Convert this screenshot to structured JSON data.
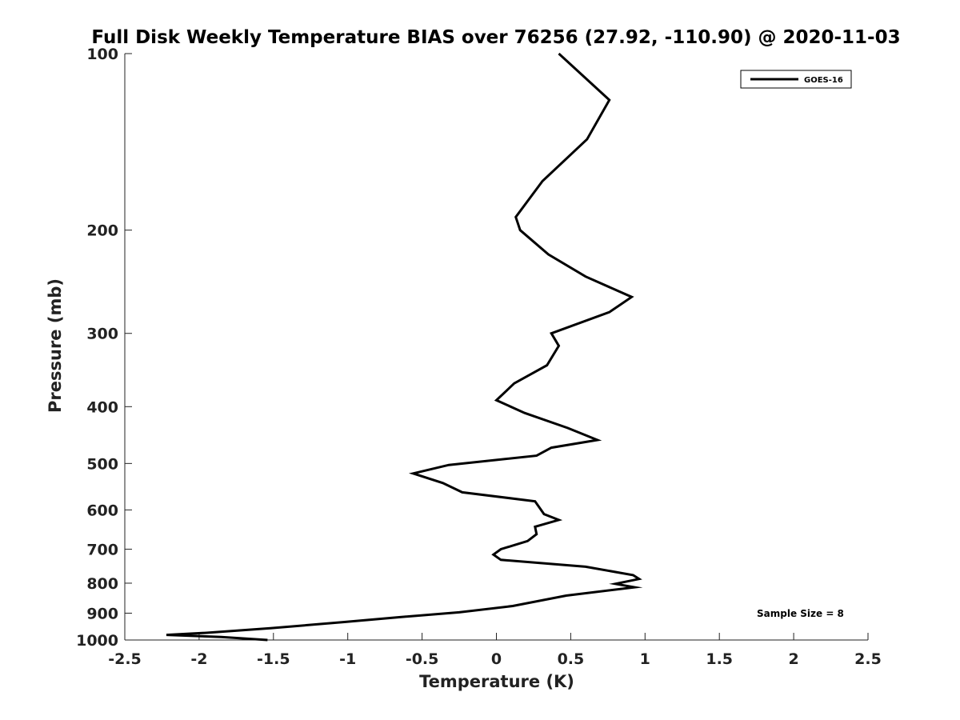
{
  "chart_data": {
    "type": "line",
    "title": "Full Disk Weekly Temperature BIAS over 76256 (27.92, -110.90) @ 2020-11-03",
    "xlabel": "Temperature (K)",
    "ylabel": "Pressure (mb)",
    "xlim": [
      -2.5,
      2.5
    ],
    "ylim": [
      1000,
      100
    ],
    "yscale": "log",
    "y_reversed": true,
    "x_ticks": [
      "-2.5",
      "-2",
      "-1.5",
      "-1",
      "-0.5",
      "0",
      "0.5",
      "1",
      "1.5",
      "2",
      "2.5"
    ],
    "y_ticks": [
      "100",
      "200",
      "300",
      "400",
      "500",
      "600",
      "700",
      "800",
      "900",
      "1000"
    ],
    "grid": false,
    "legend_position": "top-right",
    "series": [
      {
        "name": "GOES-16",
        "color": "#000000",
        "points": [
          {
            "x": 0.42,
            "y": 100
          },
          {
            "x": 0.76,
            "y": 120
          },
          {
            "x": 0.61,
            "y": 140
          },
          {
            "x": 0.31,
            "y": 165
          },
          {
            "x": 0.13,
            "y": 190
          },
          {
            "x": 0.16,
            "y": 200
          },
          {
            "x": 0.35,
            "y": 220
          },
          {
            "x": 0.6,
            "y": 240
          },
          {
            "x": 0.91,
            "y": 260
          },
          {
            "x": 0.76,
            "y": 276
          },
          {
            "x": 0.37,
            "y": 300
          },
          {
            "x": 0.42,
            "y": 315
          },
          {
            "x": 0.34,
            "y": 340
          },
          {
            "x": 0.12,
            "y": 365
          },
          {
            "x": 0.0,
            "y": 390
          },
          {
            "x": 0.19,
            "y": 410
          },
          {
            "x": 0.48,
            "y": 435
          },
          {
            "x": 0.68,
            "y": 456
          },
          {
            "x": 0.37,
            "y": 470
          },
          {
            "x": 0.27,
            "y": 485
          },
          {
            "x": -0.32,
            "y": 503
          },
          {
            "x": -0.56,
            "y": 520
          },
          {
            "x": -0.36,
            "y": 540
          },
          {
            "x": -0.23,
            "y": 560
          },
          {
            "x": 0.26,
            "y": 580
          },
          {
            "x": 0.32,
            "y": 610
          },
          {
            "x": 0.42,
            "y": 624
          },
          {
            "x": 0.26,
            "y": 641
          },
          {
            "x": 0.27,
            "y": 660
          },
          {
            "x": 0.21,
            "y": 678
          },
          {
            "x": 0.03,
            "y": 700
          },
          {
            "x": -0.02,
            "y": 715
          },
          {
            "x": 0.03,
            "y": 730
          },
          {
            "x": 0.6,
            "y": 750
          },
          {
            "x": 0.92,
            "y": 775
          },
          {
            "x": 0.96,
            "y": 787
          },
          {
            "x": 0.8,
            "y": 802
          },
          {
            "x": 0.93,
            "y": 813
          },
          {
            "x": 0.47,
            "y": 840
          },
          {
            "x": 0.11,
            "y": 875
          },
          {
            "x": -0.25,
            "y": 897
          },
          {
            "x": -0.67,
            "y": 915
          },
          {
            "x": -1.03,
            "y": 932
          },
          {
            "x": -1.52,
            "y": 955
          },
          {
            "x": -1.95,
            "y": 972
          },
          {
            "x": -2.22,
            "y": 980
          },
          {
            "x": -1.85,
            "y": 988
          },
          {
            "x": -1.54,
            "y": 1000
          }
        ]
      }
    ],
    "annotations": [
      "Sample Size = 8"
    ]
  }
}
